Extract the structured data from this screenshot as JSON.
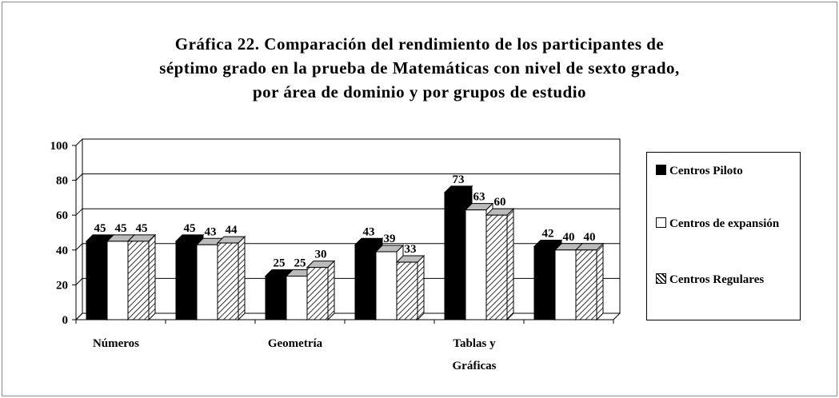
{
  "chart_data": {
    "type": "bar3d",
    "title": [
      "Gráfica 22. Comparación del rendimiento de los participantes de",
      "séptimo grado en la prueba de Matemáticas con nivel de sexto grado,",
      "por área de dominio y por grupos de estudio"
    ],
    "categories": [
      "Números",
      null,
      "Geometría",
      null,
      "Tablas y Gráficas",
      null
    ],
    "series": [
      {
        "name": "Centros Piloto",
        "color": "#000000",
        "values": [
          45,
          45,
          25,
          43,
          73,
          42
        ]
      },
      {
        "name": "Centros de expansión",
        "color": "#ffffff",
        "values": [
          45,
          43,
          25,
          39,
          63,
          40
        ]
      },
      {
        "name": "Centros Regulares",
        "color": "hatch",
        "values": [
          45,
          44,
          30,
          33,
          60,
          40
        ]
      }
    ],
    "ylim": [
      0,
      100
    ],
    "yticks": [
      0,
      20,
      40,
      60,
      80,
      100
    ],
    "grid": true,
    "legend": "right"
  }
}
